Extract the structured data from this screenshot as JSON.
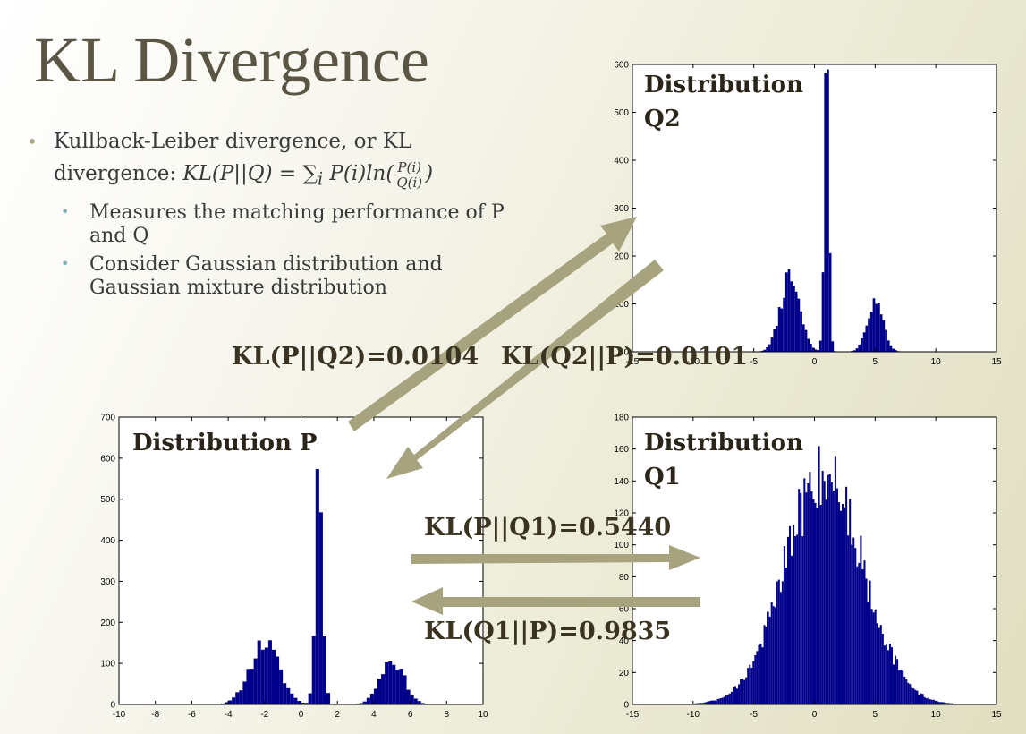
{
  "slide": {
    "title": "KL Divergence",
    "bullet1_text": "Kullback-Leiber divergence, or KL divergence:",
    "formula": {
      "lhs": "KL(P||Q) = ∑",
      "subscript": "i",
      "mid": " P(i)ln(",
      "numerator": "P(i)",
      "denominator": "Q(i)",
      "end": ")"
    },
    "sub_bullets": [
      "Measures the matching performance of P and Q",
      "Consider Gaussian distribution and Gaussian mixture distribution"
    ]
  },
  "labels": {
    "kl_p_q2": "KL(P||Q2)=0.0104",
    "kl_q2_p": "KL(Q2||P)=0.0101",
    "kl_p_q1": "KL(P||Q1)=0.5440",
    "kl_q1_p": "KL(Q1||P)=0.9835"
  },
  "colors": {
    "bars": "#00008b",
    "arrow": "#a6a37e",
    "title": "#5b5544"
  },
  "chart_data": [
    {
      "id": "p",
      "type": "bar",
      "title": "Distribution P",
      "xlim": [
        -10,
        10
      ],
      "ylim": [
        0,
        700
      ],
      "xticks": [
        -10,
        -8,
        -6,
        -4,
        -2,
        0,
        2,
        4,
        6,
        8,
        10
      ],
      "yticks": [
        0,
        100,
        200,
        300,
        400,
        500,
        600,
        700
      ],
      "bin_width": 0.2,
      "components": [
        {
          "mu": -2,
          "sigma": 0.8,
          "amp": 150
        },
        {
          "mu": 1,
          "sigma": 0.2,
          "amp": 600
        },
        {
          "mu": 5,
          "sigma": 0.65,
          "amp": 110
        }
      ]
    },
    {
      "id": "q2",
      "type": "bar",
      "title": "Distribution\nQ2",
      "xlim": [
        -15,
        15
      ],
      "ylim": [
        0,
        600
      ],
      "xticks": [
        -15,
        -10,
        -5,
        0,
        5,
        10,
        15
      ],
      "yticks": [
        0,
        100,
        200,
        300,
        400,
        500,
        600
      ],
      "bin_width": 0.2,
      "components": [
        {
          "mu": -2,
          "sigma": 0.8,
          "amp": 155
        },
        {
          "mu": 1,
          "sigma": 0.2,
          "amp": 580
        },
        {
          "mu": 5,
          "sigma": 0.65,
          "amp": 105
        }
      ]
    },
    {
      "id": "q1",
      "type": "bar",
      "title": "Distribution\nQ1",
      "xlim": [
        -15,
        15
      ],
      "ylim": [
        0,
        180
      ],
      "xticks": [
        -15,
        -10,
        -5,
        0,
        5,
        10,
        15
      ],
      "yticks": [
        0,
        20,
        40,
        60,
        80,
        100,
        120,
        140,
        160,
        180
      ],
      "bin_width": 0.15,
      "components": [
        {
          "mu": 0.8,
          "sigma": 3.2,
          "amp": 145
        }
      ]
    }
  ]
}
